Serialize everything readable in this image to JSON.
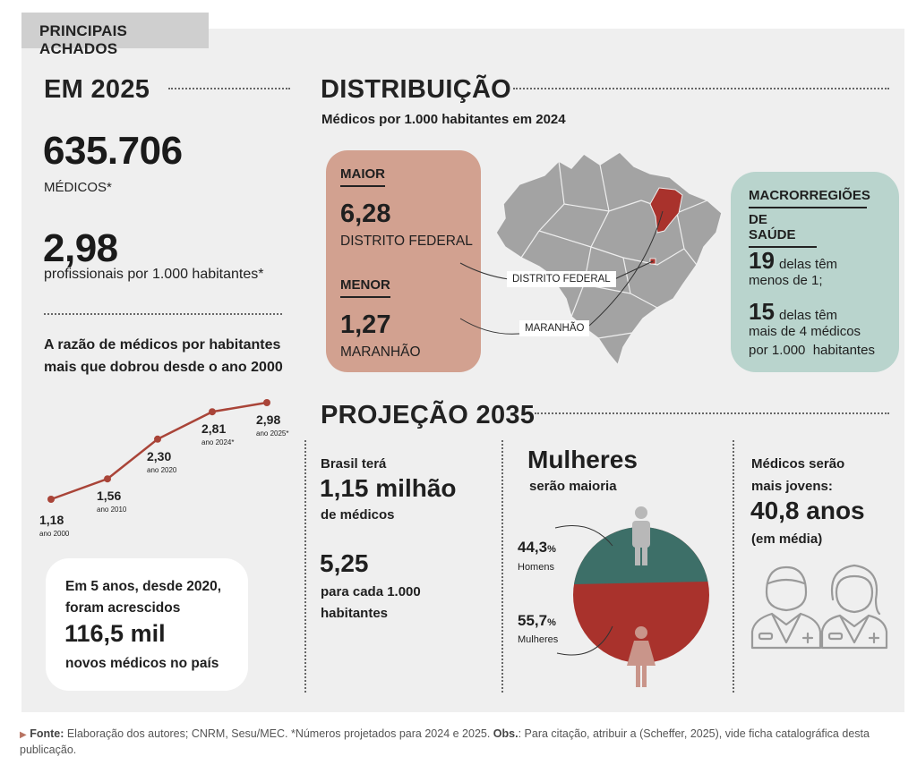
{
  "header": {
    "tab_label": "PRINCIPAIS ACHADOS"
  },
  "em2025": {
    "title": "EM 2025",
    "medicos_value": "635.706",
    "medicos_label": "MÉDICOS*",
    "ratio_value": "2,98",
    "ratio_label": "profissionais por 1.000 habitantes*",
    "trend_text_1": "A razão de médicos por habitantes",
    "trend_text_2": "mais que dobrou desde o ano 2000"
  },
  "chart_data": {
    "type": "line",
    "x": [
      "ano 2000",
      "ano 2010",
      "ano 2020",
      "ano 2024*",
      "ano 2025*"
    ],
    "values": [
      1.18,
      1.56,
      2.3,
      2.81,
      2.98
    ],
    "value_labels": [
      "1,18",
      "1,56",
      "2,30",
      "2,81",
      "2,98"
    ],
    "title": "",
    "color": "#a94438"
  },
  "acrescidos": {
    "line1": "Em 5 anos, desde 2020,",
    "line2": "foram acrescidos",
    "value": "116,5 mil",
    "line3": "novos médicos no país"
  },
  "distribuicao": {
    "title": "DISTRIBUIÇÃO",
    "subtitle": "Médicos por 1.000 habitantes em 2024",
    "maior_label": "MAIOR",
    "maior_value": "6,28",
    "maior_place": "DISTRITO FEDERAL",
    "menor_label": "MENOR",
    "menor_value": "1,27",
    "menor_place": "MARANHÃO",
    "map_callout_df": "DISTRITO FEDERAL",
    "map_callout_ma": "MARANHÃO",
    "highlight_color": "#a9322c",
    "map_color": "#a3a3a3"
  },
  "macro": {
    "title_1": "MACRORREGIÕES",
    "title_2": "DE SAÚDE",
    "n1": "19",
    "t1a": "delas têm",
    "t1b": "menos de 1;",
    "n2": "15",
    "t2a": "delas têm",
    "t2b": "mais de 4 médicos",
    "t2c": "por 1.000  habitantes"
  },
  "projecao": {
    "title": "PROJEÇÃO 2035",
    "brasil_tera": "Brasil terá",
    "milhao": "1,15 milhão",
    "de_medicos": "de médicos",
    "ratio": "5,25",
    "ratio_label_1": "para cada 1.000",
    "ratio_label_2": "habitantes",
    "mulheres_title": "Mulheres",
    "mulheres_sub": "serão maioria",
    "homens_pct": "44,3",
    "homens_pct_sign": "%",
    "homens_label": "Homens",
    "mulheres_pct": "55,7",
    "mulheres_pct_sign": "%",
    "mulheres_label": "Mulheres",
    "jovens_1": "Médicos serão",
    "jovens_2": "mais jovens:",
    "idade": "40,8 anos",
    "idade_sub": "(em média)"
  },
  "gender_data": {
    "homens": 44.3,
    "mulheres": 55.7,
    "homens_color": "#3d6f68",
    "mulheres_color": "#a9322c"
  },
  "footer": {
    "fonte_label": "Fonte:",
    "fonte_text": " Elaboração dos autores; CNRM, Sesu/MEC. *Números projetados para 2024 e 2025. ",
    "obs_label": "Obs.",
    "obs_text": ": Para citação, atribuir a (Scheffer, 2025), vide ficha catalográfica desta publicação."
  }
}
